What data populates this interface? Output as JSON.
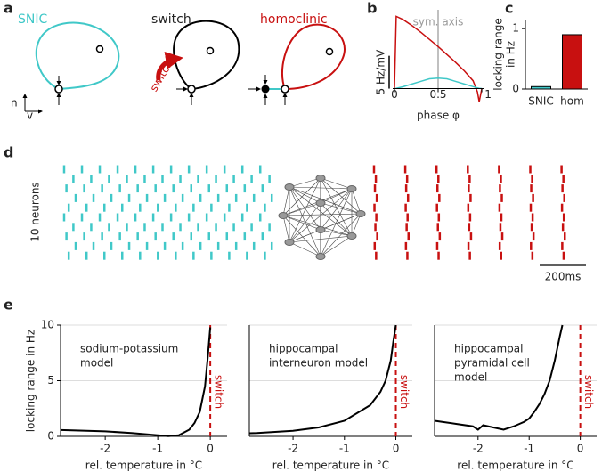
{
  "panel_labels": [
    "a",
    "b",
    "c",
    "d",
    "e"
  ],
  "panel_a": {
    "titles": [
      "SNIC",
      "switch",
      "homoclinic"
    ],
    "arrow_label": "switch",
    "axis_labels": [
      "n",
      "v"
    ]
  },
  "raster": {
    "ylabel": "10 neurons",
    "scalebar_label": "200ms",
    "scalebar_ms": 200,
    "left_color": "#40c8c8",
    "right_color": "#c81010",
    "left_spikes": [
      [
        0,
        77,
        154,
        231,
        308,
        385,
        462,
        539,
        616,
        693,
        770,
        847
      ],
      [
        40,
        117,
        194,
        271,
        348,
        425,
        502,
        579,
        656,
        733,
        810,
        887
      ],
      [
        10,
        87,
        164,
        241,
        318,
        395,
        472,
        549,
        626,
        703,
        780,
        857
      ],
      [
        50,
        127,
        204,
        281,
        358,
        435,
        512,
        589,
        666,
        743,
        820,
        897
      ],
      [
        20,
        97,
        174,
        251,
        328,
        405,
        482,
        559,
        636,
        713,
        790,
        867
      ],
      [
        0,
        77,
        154,
        231,
        308,
        385,
        462,
        539,
        616,
        693,
        770,
        847
      ],
      [
        40,
        117,
        194,
        271,
        348,
        425,
        502,
        579,
        656,
        733,
        810,
        887
      ],
      [
        10,
        87,
        164,
        241,
        318,
        395,
        472,
        549,
        626,
        703,
        780,
        857
      ],
      [
        50,
        127,
        204,
        281,
        358,
        435,
        512,
        589,
        666,
        743,
        820,
        897
      ],
      [
        20,
        97,
        174,
        251,
        328,
        405,
        482,
        559,
        636,
        713,
        790,
        867
      ]
    ],
    "right_spikes": [
      [
        0,
        135,
        270,
        405,
        540,
        675,
        810
      ],
      [
        8,
        143,
        278,
        413,
        548,
        683,
        818
      ],
      [
        4,
        139,
        274,
        409,
        544,
        679,
        814
      ],
      [
        12,
        147,
        282,
        417,
        552,
        687,
        822
      ],
      [
        2,
        137,
        272,
        407,
        542,
        677,
        812
      ],
      [
        10,
        145,
        280,
        415,
        550,
        685,
        820
      ],
      [
        6,
        141,
        276,
        411,
        546,
        681,
        816
      ],
      [
        14,
        149,
        284,
        419,
        554,
        689,
        824
      ],
      [
        3,
        138,
        273,
        408,
        543,
        678,
        813
      ],
      [
        9,
        144,
        279,
        414,
        549,
        684,
        819
      ]
    ]
  },
  "chart_data": [
    {
      "type": "line",
      "xlabel": "phase φ",
      "annotation": "sym. axis",
      "annotation_x": 0.5,
      "scalebar_label": "5 Hz/mV",
      "scalebar_value": 5,
      "x": [
        0,
        0.02,
        0.1,
        0.2,
        0.3,
        0.4,
        0.5,
        0.6,
        0.7,
        0.8,
        0.9,
        0.95,
        0.97,
        1
      ],
      "xlim": [
        -0.02,
        1.02
      ],
      "xticks": [
        0,
        0.5,
        1
      ],
      "ylim": [
        -2.5,
        12
      ],
      "series": [
        {
          "color": "#c81010",
          "values": [
            0,
            11,
            10.5,
            9.6,
            8.6,
            7.5,
            6.4,
            5.2,
            4.0,
            2.7,
            1.2,
            -0.5,
            -2,
            0
          ]
        },
        {
          "color": "#40c8c8",
          "values": [
            0,
            0.05,
            0.3,
            0.7,
            1.1,
            1.5,
            1.6,
            1.5,
            1.1,
            0.7,
            0.3,
            0.12,
            0.05,
            0
          ]
        }
      ]
    },
    {
      "type": "bar",
      "ylabel": [
        "locking range",
        "in Hz"
      ],
      "categories": [
        "SNIC",
        "hom"
      ],
      "values": [
        0.04,
        0.9
      ],
      "colors": [
        "#40c8c8",
        "#c81010"
      ],
      "ylim": [
        0,
        1.15
      ],
      "yticks": [
        0,
        1
      ]
    },
    {
      "type": "line",
      "annotation": [
        "sodium-potassium",
        "model"
      ],
      "xlabel": "rel. temperature in °C",
      "ylabel": "locking range in Hz",
      "marker_x": 0,
      "marker_label": "switch",
      "color": "#000000",
      "show_ytick_labels": true,
      "x": [
        -2.85,
        -2.7,
        -2,
        -1.5,
        -1,
        -0.8,
        -0.6,
        -0.4,
        -0.3,
        -0.2,
        -0.1,
        -0.05,
        0
      ],
      "values": [
        0.57,
        0.55,
        0.45,
        0.3,
        0.1,
        0.02,
        0.1,
        0.6,
        1.2,
        2.2,
        4.5,
        7,
        9.8
      ],
      "xlim": [
        -2.85,
        0.32
      ],
      "xticks": [
        -2,
        -1,
        0
      ],
      "ylim": [
        0,
        10
      ],
      "yticks": [
        0,
        5,
        10
      ]
    },
    {
      "type": "line",
      "annotation": [
        "hippocampal",
        "interneuron model"
      ],
      "xlabel": "rel. temperature in °C",
      "marker_x": 0,
      "marker_label": "switch",
      "color": "#000000",
      "show_ytick_labels": false,
      "x": [
        -2.85,
        -2.7,
        -2,
        -1.5,
        -1,
        -0.5,
        -0.3,
        -0.2,
        -0.1,
        -0.05,
        0
      ],
      "values": [
        0.28,
        0.3,
        0.5,
        0.8,
        1.4,
        2.8,
        4,
        5,
        6.8,
        8.5,
        10
      ],
      "xlim": [
        -2.85,
        0.32
      ],
      "xticks": [
        -2,
        -1,
        0
      ],
      "ylim": [
        0,
        10
      ],
      "yticks": [
        0,
        5,
        10
      ]
    },
    {
      "type": "line",
      "annotation": [
        "hippocampal",
        "pyramidal cell",
        "model"
      ],
      "xlabel": "rel. temperature in °C",
      "marker_x": 0,
      "marker_label": "switch",
      "color": "#000000",
      "show_ytick_labels": false,
      "x": [
        -2.85,
        -2.7,
        -2.4,
        -2.1,
        -2,
        -1.9,
        -1.7,
        -1.5,
        -1.3,
        -1.1,
        -1,
        -0.9,
        -0.8,
        -0.7,
        -0.6,
        -0.5,
        -0.4,
        -0.35
      ],
      "values": [
        1.4,
        1.3,
        1.1,
        0.9,
        0.6,
        1.0,
        0.8,
        0.6,
        0.9,
        1.3,
        1.6,
        2.2,
        2.9,
        3.8,
        5.0,
        6.8,
        9.0,
        10
      ],
      "xlim": [
        -2.85,
        0.32
      ],
      "xticks": [
        -2,
        -1,
        0
      ],
      "ylim": [
        0,
        10
      ],
      "yticks": [
        0,
        5,
        10
      ]
    }
  ]
}
